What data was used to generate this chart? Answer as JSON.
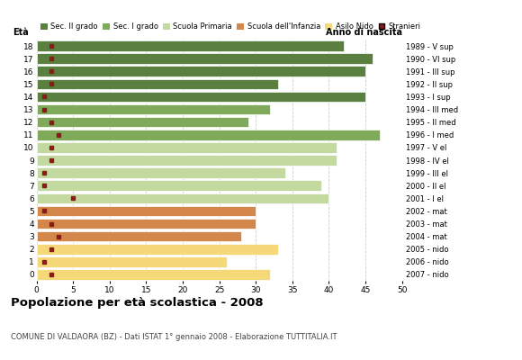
{
  "ages": [
    18,
    17,
    16,
    15,
    14,
    13,
    12,
    11,
    10,
    9,
    8,
    7,
    6,
    5,
    4,
    3,
    2,
    1,
    0
  ],
  "anni": [
    "1989 - V sup",
    "1990 - VI sup",
    "1991 - III sup",
    "1992 - II sup",
    "1993 - I sup",
    "1994 - III med",
    "1995 - II med",
    "1996 - I med",
    "1997 - V el",
    "1998 - IV el",
    "1999 - III el",
    "2000 - II el",
    "2001 - I el",
    "2002 - mat",
    "2003 - mat",
    "2004 - mat",
    "2005 - nido",
    "2006 - nido",
    "2007 - nido"
  ],
  "values": [
    42,
    46,
    45,
    33,
    45,
    32,
    29,
    47,
    41,
    41,
    34,
    39,
    40,
    30,
    30,
    28,
    33,
    26,
    32
  ],
  "stranieri": [
    2,
    2,
    2,
    2,
    1,
    1,
    2,
    3,
    2,
    2,
    1,
    1,
    5,
    1,
    2,
    3,
    2,
    1,
    2
  ],
  "bar_colors": [
    "#5a8040",
    "#5a8040",
    "#5a8040",
    "#5a8040",
    "#5a8040",
    "#7faa5a",
    "#7faa5a",
    "#7faa5a",
    "#c4d9a0",
    "#c4d9a0",
    "#c4d9a0",
    "#c4d9a0",
    "#c4d9a0",
    "#d4874a",
    "#d4874a",
    "#d4874a",
    "#f5d878",
    "#f5d878",
    "#f5d878"
  ],
  "stranieri_color": "#8b1a1a",
  "title": "Popolazione per età scolastica - 2008",
  "subtitle": "COMUNE DI VALDAORA (BZ) - Dati ISTAT 1° gennaio 2008 - Elaborazione TUTTITALIA.IT",
  "ylabel_left": "Età",
  "ylabel_right": "Anno di nascita",
  "xlim": [
    0,
    50
  ],
  "xticks": [
    0,
    5,
    10,
    15,
    20,
    25,
    30,
    35,
    40,
    45,
    50
  ],
  "legend_labels": [
    "Sec. II grado",
    "Sec. I grado",
    "Scuola Primaria",
    "Scuola dell'Infanzia",
    "Asilo Nido",
    "Stranieri"
  ],
  "legend_colors": [
    "#5a8040",
    "#7faa5a",
    "#c4d9a0",
    "#d4874a",
    "#f5d878",
    "#8b1a1a"
  ],
  "bg_color": "#ffffff",
  "grid_color": "#cccccc"
}
